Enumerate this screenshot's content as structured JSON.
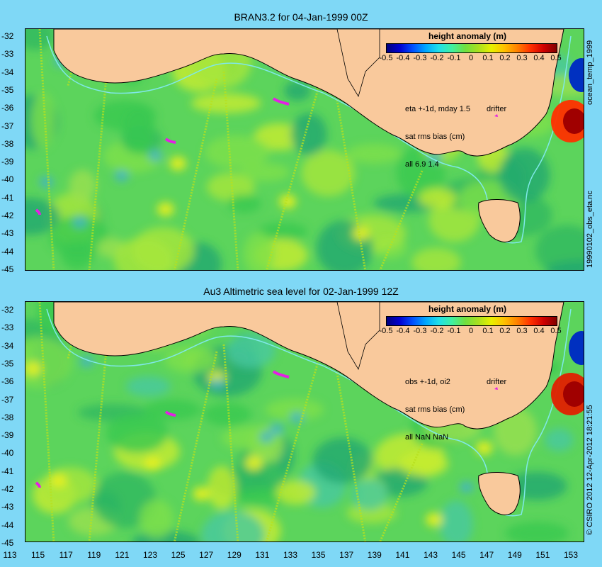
{
  "colors": {
    "land": "#f9c99c",
    "frame_bg": "#7fd8f6",
    "drifter": "#e41fe4",
    "coast_contour": "#7fe8e8"
  },
  "top_panel": {
    "title": "BRAN3.2 for 04-Jan-1999 00Z",
    "legend_title": "height anomaly (m)",
    "colorbar_ticks": [
      "-0.5",
      "-0.4",
      "-0.3",
      "-0.2",
      "-0.1",
      "0",
      "0.1",
      "0.2",
      "0.3",
      "0.4",
      "0.5"
    ],
    "info_lines": [
      "eta +-1d, mday 1.5",
      "sat rms bias (cm)",
      "all 6.9 1.4"
    ],
    "drifter_label": "drifter",
    "side_label_right_top": "ocean_temp_1999",
    "side_label_right_bottom": "19990102_obs_eta.nc"
  },
  "bottom_panel": {
    "title": "Au3 Altimetric sea level  for 02-Jan-1999 12Z",
    "legend_title": "height anomaly (m)",
    "colorbar_ticks": [
      "-0.5",
      "-0.4",
      "-0.3",
      "-0.2",
      "-0.1",
      "0",
      "0.1",
      "0.2",
      "0.3",
      "0.4",
      "0.5"
    ],
    "info_lines": [
      "obs +-1d, oi2",
      "sat rms bias (cm)",
      "all NaN NaN"
    ],
    "drifter_label": "drifter",
    "side_label_right": "© CSIRO 2012   12-Apr-2012 18:21:55"
  },
  "axes": {
    "y_ticks": [
      "-32",
      "-33",
      "-34",
      "-35",
      "-36",
      "-37",
      "-38",
      "-39",
      "-40",
      "-41",
      "-42",
      "-43",
      "-44",
      "-45"
    ],
    "x_ticks": [
      "113",
      "115",
      "117",
      "119",
      "121",
      "123",
      "125",
      "127",
      "129",
      "131",
      "133",
      "135",
      "137",
      "139",
      "141",
      "143",
      "145",
      "147",
      "149",
      "151",
      "153"
    ]
  }
}
